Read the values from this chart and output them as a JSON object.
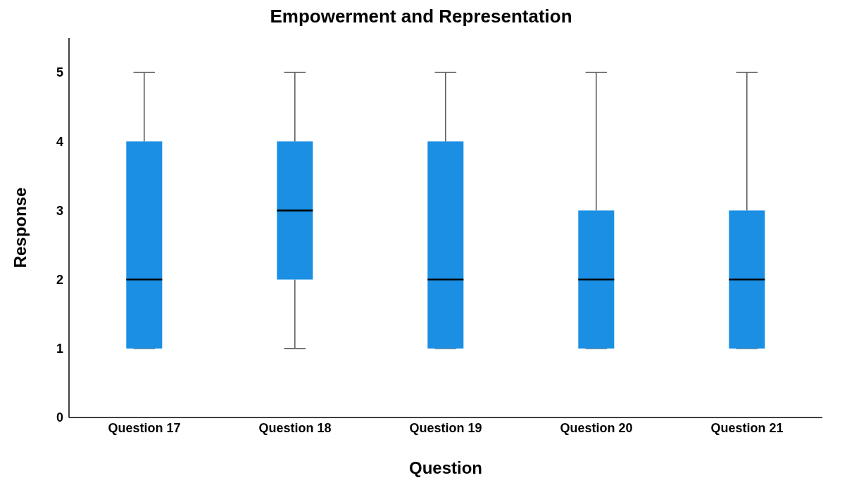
{
  "chart_data": {
    "type": "box",
    "title": "Empowerment and Representation",
    "xlabel": "Question",
    "ylabel": "Response",
    "categories": [
      "Question 17",
      "Question 18",
      "Question 19",
      "Question 20",
      "Question 21"
    ],
    "color": "#1a8fe3",
    "boxes": [
      {
        "low": 1,
        "q1": 1,
        "median": 2,
        "q3": 4,
        "high": 5
      },
      {
        "low": 1,
        "q1": 2,
        "median": 3,
        "q3": 4,
        "high": 5
      },
      {
        "low": 1,
        "q1": 1,
        "median": 2,
        "q3": 4,
        "high": 5
      },
      {
        "low": 1,
        "q1": 1,
        "median": 2,
        "q3": 3,
        "high": 5
      },
      {
        "low": 1,
        "q1": 1,
        "median": 2,
        "q3": 3,
        "high": 5
      }
    ],
    "ylim": [
      0,
      5.5
    ],
    "yticks": [
      0,
      1,
      2,
      3,
      4,
      5
    ],
    "grid": false,
    "legend": false
  }
}
